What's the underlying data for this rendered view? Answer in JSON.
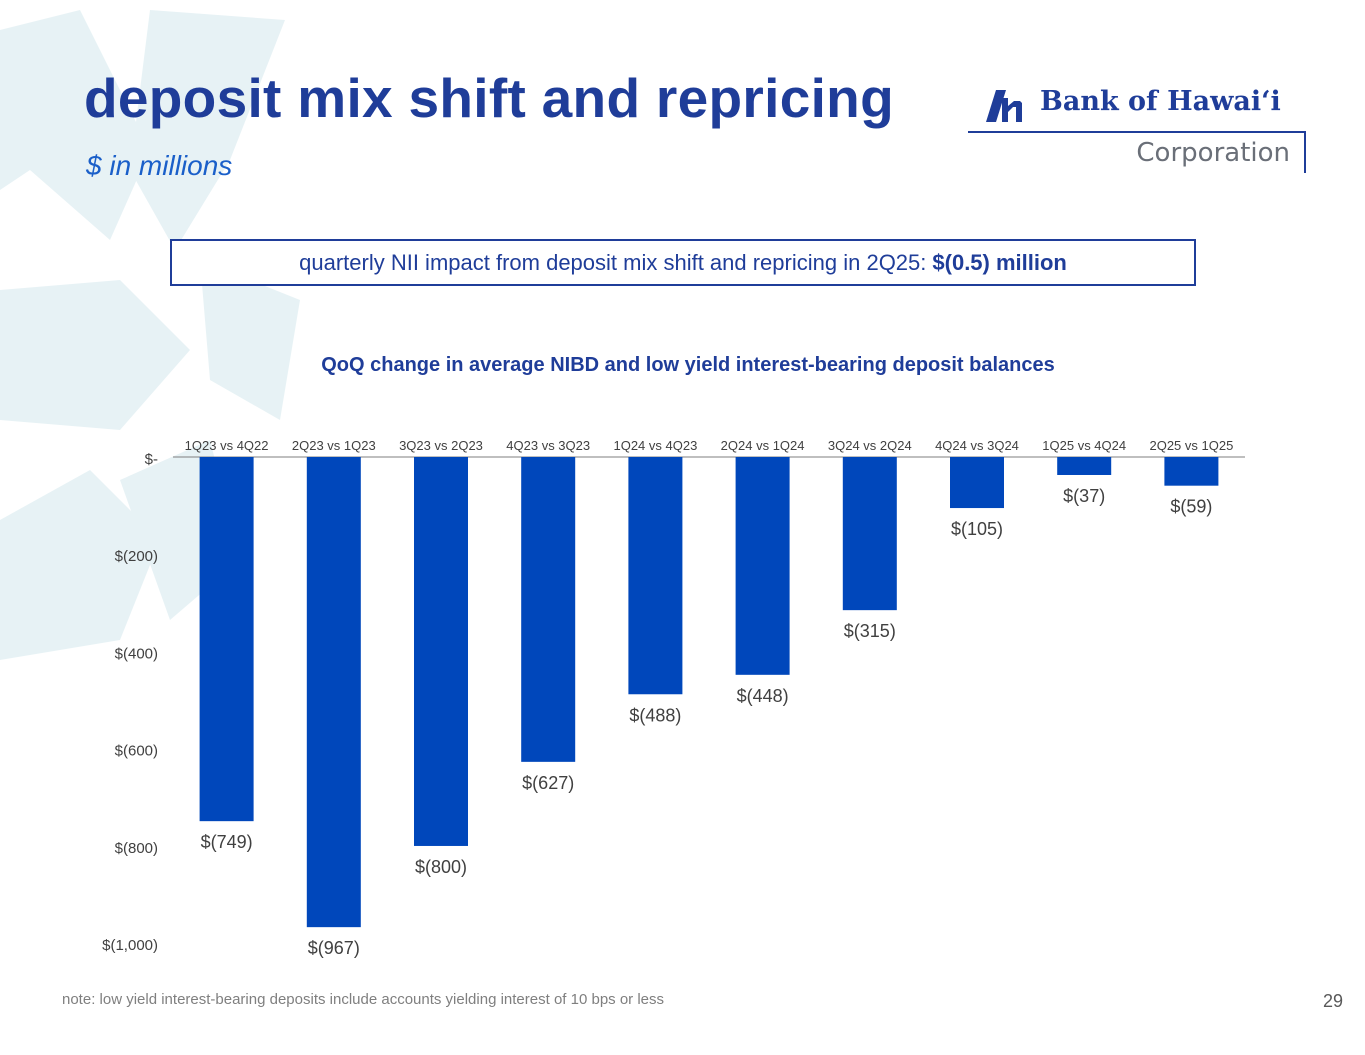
{
  "slide": {
    "title": "deposit mix shift and repricing",
    "subtitle": "$ in millions",
    "callout_text": "quarterly NII impact from deposit mix shift and repricing in 2Q25:",
    "callout_value": "$(0.5) million",
    "footnote": "note: low yield interest-bearing deposits include accounts yielding interest of 10 bps or less",
    "page_number": "29"
  },
  "logo": {
    "name": "Bank of Hawaiʻi",
    "sub": "Corporation"
  },
  "colors": {
    "title": "#1f3d99",
    "subtitle": "#1a5fc9",
    "bar": "#0047bb",
    "axis_text": "#404040",
    "background_shape": "#dfeef2"
  },
  "chart_data": {
    "type": "bar",
    "title": "QoQ change in average NIBD and low yield interest-bearing deposit balances",
    "categories": [
      "1Q23 vs 4Q22",
      "2Q23 vs 1Q23",
      "3Q23 vs 2Q23",
      "4Q23 vs 3Q23",
      "1Q24 vs 4Q23",
      "2Q24 vs 1Q24",
      "3Q24 vs 2Q24",
      "4Q24 vs 3Q24",
      "1Q25 vs 4Q24",
      "2Q25 vs 1Q25"
    ],
    "values": [
      -749,
      -967,
      -800,
      -627,
      -488,
      -448,
      -315,
      -105,
      -37,
      -59
    ],
    "data_labels": [
      "$(749)",
      "$(967)",
      "$(800)",
      "$(627)",
      "$(488)",
      "$(448)",
      "$(315)",
      "$(105)",
      "$(37)",
      "$(59)"
    ],
    "yticks": [
      0,
      -200,
      -400,
      -600,
      -800,
      -1000
    ],
    "ytick_labels": [
      "$-",
      "$(200)",
      "$(400)",
      "$(600)",
      "$(800)",
      "$(1,000)"
    ],
    "ylim": [
      -1000,
      0
    ],
    "xlabel": "",
    "ylabel": "",
    "category_axis_position": "top",
    "grid": false,
    "legend": "none"
  }
}
